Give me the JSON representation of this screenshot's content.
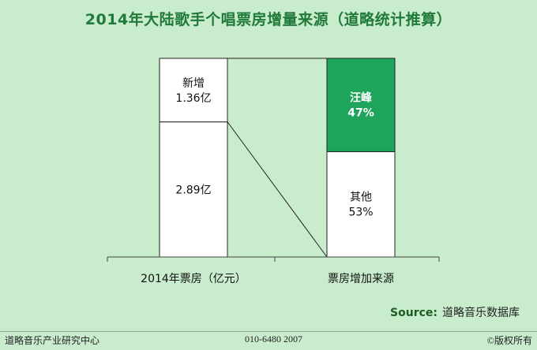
{
  "title": "2014年大陆歌手个唱票房增量来源（道略统计推算）",
  "source": {
    "label": "Source:",
    "name": "道略音乐数据库"
  },
  "footer": {
    "left": "道略音乐产业研究中心",
    "middle": "010-6480 2007",
    "right": "©版权所有"
  },
  "colors": {
    "accent": "#1fa55b",
    "background": "#c9eccd",
    "bar": "#ffffff"
  },
  "chart_data": {
    "type": "bar",
    "stacked": true,
    "categories": [
      "2014年票房（亿元）",
      "票房增加来源"
    ],
    "series": [
      {
        "values": [
          2.89,
          53
        ],
        "labels": [
          "2.89亿",
          "其他\n53%"
        ]
      },
      {
        "values": [
          1.36,
          47
        ],
        "labels": [
          "新增\n1.36亿",
          "汪峰\n47%"
        ]
      }
    ]
  }
}
